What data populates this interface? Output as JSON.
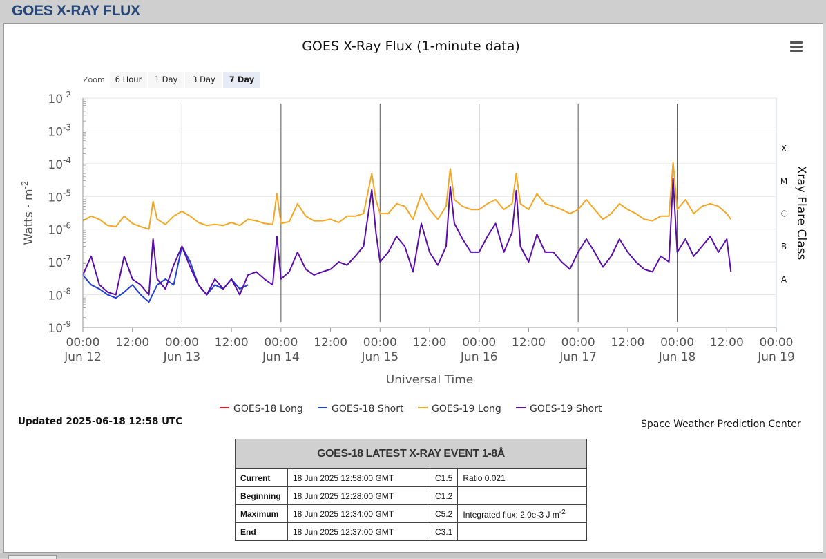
{
  "header": {
    "title": "GOES X-RAY FLUX"
  },
  "chart_data": {
    "type": "line",
    "title": "GOES X-Ray Flux (1-minute data)",
    "xlabel": "Universal Time",
    "ylabel": "Watts · m-2",
    "y2label": "Xray Flare Class",
    "yscale": "log",
    "ylim": [
      1e-09,
      0.01
    ],
    "xlim_hours": [
      0,
      168
    ],
    "y_ticks": [
      {
        "base": "10",
        "exp": "-2"
      },
      {
        "base": "10",
        "exp": "-3"
      },
      {
        "base": "10",
        "exp": "-4"
      },
      {
        "base": "10",
        "exp": "-5"
      },
      {
        "base": "10",
        "exp": "-6"
      },
      {
        "base": "10",
        "exp": "-7"
      },
      {
        "base": "10",
        "exp": "-8"
      },
      {
        "base": "10",
        "exp": "-9"
      }
    ],
    "x_ticks": [
      {
        "t": "00:00",
        "d": "Jun 12"
      },
      {
        "t": "12:00",
        "d": ""
      },
      {
        "t": "00:00",
        "d": "Jun 13"
      },
      {
        "t": "12:00",
        "d": ""
      },
      {
        "t": "00:00",
        "d": "Jun 14"
      },
      {
        "t": "12:00",
        "d": ""
      },
      {
        "t": "00:00",
        "d": "Jun 15"
      },
      {
        "t": "12:00",
        "d": ""
      },
      {
        "t": "00:00",
        "d": "Jun 16"
      },
      {
        "t": "12:00",
        "d": ""
      },
      {
        "t": "00:00",
        "d": "Jun 17"
      },
      {
        "t": "12:00",
        "d": ""
      },
      {
        "t": "00:00",
        "d": "Jun 18"
      },
      {
        "t": "12:00",
        "d": ""
      },
      {
        "t": "00:00",
        "d": "Jun 19"
      }
    ],
    "flare_classes": [
      {
        "label": "X",
        "flux": 0.0001
      },
      {
        "label": "M",
        "flux": 1e-05
      },
      {
        "label": "C",
        "flux": 1e-06
      },
      {
        "label": "B",
        "flux": 1e-07
      },
      {
        "label": "A",
        "flux": 1e-08
      }
    ],
    "day_marker_hours": [
      24,
      48,
      72,
      96,
      120,
      144
    ],
    "series": [
      {
        "name": "GOES-18 Long",
        "color": "#e31a1c",
        "x": [],
        "y": []
      },
      {
        "name": "GOES-18 Short",
        "color": "#1f3fd8",
        "x": [
          0,
          2,
          4,
          6,
          8,
          10,
          12,
          14,
          16,
          18,
          20,
          22,
          24,
          26,
          28,
          30,
          32,
          34,
          36,
          38,
          40
        ],
        "y": [
          4e-08,
          2e-08,
          1.5e-08,
          1e-08,
          8e-09,
          1.2e-08,
          2e-08,
          1e-08,
          6e-09,
          2e-08,
          3e-08,
          2e-08,
          3e-07,
          1e-07,
          2e-08,
          1e-08,
          2e-08,
          1.5e-08,
          3e-08,
          1.5e-08,
          2e-08
        ]
      },
      {
        "name": "GOES-19 Long",
        "color": "#f5a623",
        "x": [
          0,
          2,
          4,
          6,
          8,
          10,
          12,
          14,
          16,
          17,
          18,
          20,
          22,
          24,
          26,
          28,
          30,
          32,
          34,
          36,
          38,
          40,
          42,
          44,
          46,
          47,
          48,
          50,
          52,
          54,
          56,
          58,
          60,
          62,
          64,
          66,
          68,
          70,
          71,
          72,
          74,
          76,
          78,
          80,
          82,
          84,
          86,
          88,
          89,
          90,
          92,
          94,
          96,
          98,
          100,
          102,
          104,
          105,
          106,
          108,
          110,
          112,
          114,
          116,
          118,
          120,
          122,
          124,
          126,
          128,
          130,
          132,
          134,
          136,
          138,
          140,
          142,
          143,
          144,
          146,
          148,
          150,
          152,
          154,
          156,
          157
        ],
        "y": [
          1.8e-06,
          2.5e-06,
          2e-06,
          1.3e-06,
          1.2e-06,
          2.5e-06,
          1.5e-06,
          1.2e-06,
          1e-06,
          7e-06,
          2e-06,
          1.4e-06,
          2.5e-06,
          3.5e-06,
          2.5e-06,
          1.6e-06,
          1.3e-06,
          1.4e-06,
          1.3e-06,
          1.6e-06,
          1.3e-06,
          2e-06,
          1.8e-06,
          1.5e-06,
          1.4e-06,
          1.2e-05,
          1.5e-06,
          1.7e-06,
          6e-06,
          2.5e-06,
          1.8e-06,
          1.8e-06,
          2e-06,
          1.6e-06,
          2.5e-06,
          2.5e-06,
          3e-06,
          5e-05,
          8e-06,
          3e-06,
          3e-06,
          6e-06,
          5e-06,
          2e-06,
          1.2e-05,
          4e-06,
          2e-06,
          5e-06,
          7e-05,
          8e-06,
          5e-06,
          4e-06,
          4e-06,
          6e-06,
          8e-06,
          4e-06,
          6e-06,
          5e-05,
          6e-06,
          4e-06,
          1.2e-05,
          6e-06,
          5e-06,
          4e-06,
          3e-06,
          4e-06,
          8e-06,
          4e-06,
          2e-06,
          3e-06,
          6e-06,
          4e-06,
          3e-06,
          2e-06,
          1.8e-06,
          2.5e-06,
          2.5e-06,
          0.00011,
          4e-06,
          8e-06,
          3e-06,
          5e-06,
          6e-06,
          5e-06,
          3e-06,
          2e-06
        ]
      },
      {
        "name": "GOES-19 Short",
        "color": "#5a0dab",
        "x": [
          0,
          2,
          4,
          6,
          8,
          10,
          12,
          14,
          16,
          17,
          18,
          20,
          22,
          24,
          26,
          28,
          30,
          32,
          34,
          36,
          38,
          40,
          42,
          44,
          46,
          47,
          48,
          50,
          52,
          54,
          56,
          58,
          60,
          62,
          64,
          66,
          68,
          70,
          71,
          72,
          74,
          76,
          78,
          80,
          82,
          84,
          86,
          88,
          89,
          90,
          92,
          94,
          96,
          98,
          100,
          102,
          104,
          105,
          106,
          108,
          110,
          112,
          114,
          116,
          118,
          120,
          122,
          124,
          126,
          128,
          130,
          132,
          134,
          136,
          138,
          140,
          142,
          143,
          144,
          146,
          148,
          150,
          152,
          154,
          156,
          157
        ],
        "y": [
          4e-08,
          1.5e-07,
          2e-08,
          1.2e-08,
          1e-08,
          1.5e-07,
          3e-08,
          2e-08,
          1e-08,
          5e-07,
          3e-08,
          1.5e-08,
          8e-08,
          3e-07,
          7e-08,
          2e-08,
          1e-08,
          3e-08,
          1.5e-08,
          3e-08,
          1e-08,
          4e-08,
          5e-08,
          3e-08,
          2e-08,
          6e-07,
          3e-08,
          5e-08,
          2e-07,
          6e-08,
          4e-08,
          5e-08,
          6e-08,
          1e-07,
          8e-08,
          1.5e-07,
          3e-07,
          1.6e-05,
          8e-07,
          1e-07,
          2e-07,
          6e-07,
          3e-07,
          5e-08,
          1.5e-06,
          2e-07,
          8e-08,
          3e-07,
          2e-05,
          1.5e-06,
          5e-07,
          2e-07,
          2e-07,
          6e-07,
          1.5e-06,
          2e-07,
          8e-07,
          1.5e-05,
          3e-07,
          1e-07,
          7e-07,
          2e-07,
          2e-07,
          1e-07,
          6e-08,
          2e-07,
          5e-07,
          2e-07,
          7e-08,
          1.5e-07,
          5e-07,
          2e-07,
          1e-07,
          6e-08,
          5e-08,
          1.5e-07,
          1e-07,
          3.5e-05,
          2e-07,
          5e-07,
          1.5e-07,
          3e-07,
          6e-07,
          2e-07,
          5e-07,
          5e-08
        ]
      }
    ]
  },
  "zoom": {
    "label": "Zoom",
    "buttons": [
      "6 Hour",
      "1 Day",
      "3 Day",
      "7 Day"
    ],
    "active": "7 Day"
  },
  "legend": [
    "GOES-18 Long",
    "GOES-18 Short",
    "GOES-19 Long",
    "GOES-19 Short"
  ],
  "updated": "Updated 2025-06-18 12:58 UTC",
  "credit": "Space Weather Prediction Center",
  "event_table": {
    "title": "GOES-18 LATEST X-RAY EVENT 1-8Å",
    "rows": [
      {
        "label": "Current",
        "time": "18 Jun 2025 12:58:00 GMT",
        "cls": "C1.5",
        "extra": "Ratio 0.021"
      },
      {
        "label": "Beginning",
        "time": "18 Jun 2025 12:28:00 GMT",
        "cls": "C1.2",
        "extra": ""
      },
      {
        "label": "Maximum",
        "time": "18 Jun 2025 12:34:00 GMT",
        "cls": "C5.2",
        "extra": "Integrated flux: 2.0e-3 J m-2"
      },
      {
        "label": "End",
        "time": "18 Jun 2025 12:37:00 GMT",
        "cls": "C3.1",
        "extra": ""
      }
    ]
  }
}
